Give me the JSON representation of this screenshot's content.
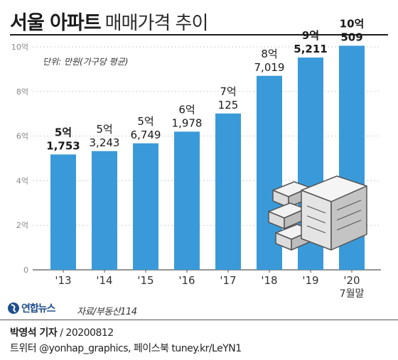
{
  "header": {
    "title_bold": "서울 아파트",
    "title_rest": "매매가격 추이"
  },
  "chart_data": {
    "type": "bar",
    "unit_note": "단위: 만원(가구당 평균)",
    "y_tick_labels": [
      "0",
      "2억",
      "4억",
      "6억",
      "8억",
      "10억"
    ],
    "ylim": [
      0,
      100000
    ],
    "categories": [
      "'13",
      "'14",
      "'15",
      "'16",
      "'17",
      "'18",
      "'19",
      "'20"
    ],
    "category_sub": [
      "",
      "",
      "",
      "",
      "",
      "",
      "",
      "7월말"
    ],
    "values": [
      51753,
      53243,
      56749,
      61978,
      70125,
      87019,
      95211,
      100509
    ],
    "label_top": [
      "5억",
      "5억",
      "5억",
      "6억",
      "7억",
      "8억",
      "9억",
      "10억"
    ],
    "label_bottom": [
      "1,753",
      "3,243",
      "6,749",
      "1,978",
      "125",
      "7,019",
      "5,211",
      "509"
    ],
    "bold_labels": [
      true,
      false,
      false,
      false,
      false,
      false,
      true,
      true
    ],
    "bar_color": "#3a9ad9"
  },
  "footer": {
    "logo": "연합뉴스",
    "source": "자료/부동산114",
    "reporter": "박영석 기자",
    "date": "20200812",
    "social": "트위터 @yonhap_graphics, 페이스북 tuney.kr/LeYN1"
  }
}
